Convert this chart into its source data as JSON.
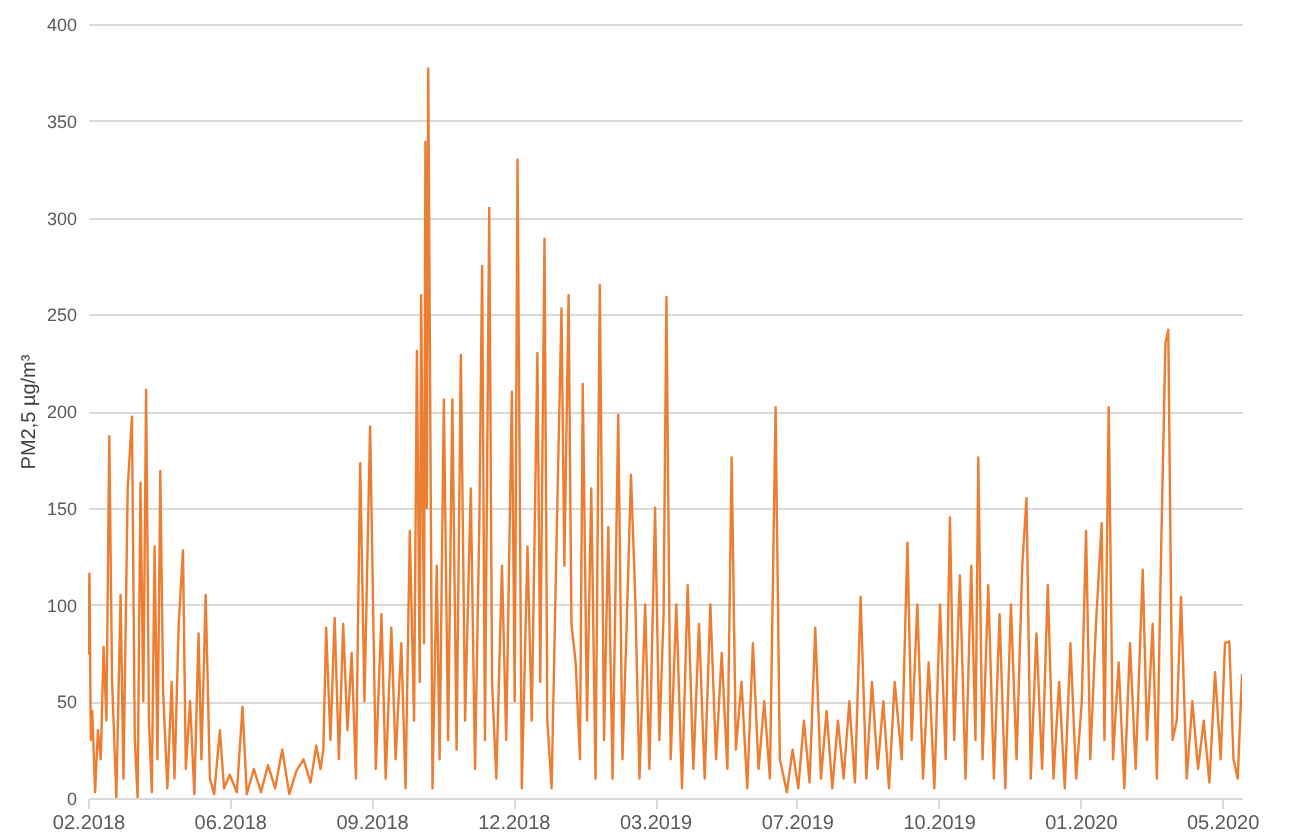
{
  "chart_data": {
    "type": "line",
    "ylabel": "PM2,5 µg/m³",
    "grid": "y",
    "xlim": [
      "2018-02-23",
      "2020-05-17"
    ],
    "ylim": [
      0,
      400
    ],
    "yticks": [
      0,
      50,
      100,
      150,
      200,
      250,
      300,
      350,
      400
    ],
    "xticks": [
      {
        "value": "2018-02-23",
        "label": "02.2018"
      },
      {
        "value": "2018-06-03",
        "label": "06.2018"
      },
      {
        "value": "2018-09-11",
        "label": "09.2018"
      },
      {
        "value": "2018-12-20",
        "label": "12.2018"
      },
      {
        "value": "2019-03-30",
        "label": "03.2019"
      },
      {
        "value": "2019-07-08",
        "label": "07.2019"
      },
      {
        "value": "2019-10-16",
        "label": "10.2019"
      },
      {
        "value": "2020-01-24",
        "label": "01.2020"
      },
      {
        "value": "2020-05-03",
        "label": "05.2020"
      }
    ],
    "x": [
      "2018-02-23",
      "2018-02-24",
      "2018-02-25",
      "2018-02-26",
      "2018-02-28",
      "2018-03-02",
      "2018-03-04",
      "2018-03-06",
      "2018-03-08",
      "2018-03-10",
      "2018-03-12",
      "2018-03-15",
      "2018-03-18",
      "2018-03-20",
      "2018-03-23",
      "2018-03-26",
      "2018-03-28",
      "2018-03-30",
      "2018-04-01",
      "2018-04-03",
      "2018-04-05",
      "2018-04-07",
      "2018-04-09",
      "2018-04-11",
      "2018-04-13",
      "2018-04-15",
      "2018-04-17",
      "2018-04-20",
      "2018-04-23",
      "2018-04-25",
      "2018-04-28",
      "2018-05-01",
      "2018-05-03",
      "2018-05-06",
      "2018-05-09",
      "2018-05-12",
      "2018-05-14",
      "2018-05-17",
      "2018-05-20",
      "2018-05-23",
      "2018-05-27",
      "2018-05-30",
      "2018-06-03",
      "2018-06-08",
      "2018-06-12",
      "2018-06-15",
      "2018-06-20",
      "2018-06-25",
      "2018-06-30",
      "2018-07-05",
      "2018-07-10",
      "2018-07-15",
      "2018-07-20",
      "2018-07-25",
      "2018-07-30",
      "2018-08-03",
      "2018-08-06",
      "2018-08-08",
      "2018-08-10",
      "2018-08-13",
      "2018-08-16",
      "2018-08-19",
      "2018-08-22",
      "2018-08-25",
      "2018-08-28",
      "2018-08-31",
      "2018-09-03",
      "2018-09-06",
      "2018-09-10",
      "2018-09-14",
      "2018-09-18",
      "2018-09-21",
      "2018-09-25",
      "2018-09-28",
      "2018-10-02",
      "2018-10-05",
      "2018-10-08",
      "2018-10-11",
      "2018-10-13",
      "2018-10-15",
      "2018-10-16",
      "2018-10-18",
      "2018-10-19",
      "2018-10-20",
      "2018-10-21",
      "2018-10-24",
      "2018-10-27",
      "2018-10-29",
      "2018-11-01",
      "2018-11-04",
      "2018-11-07",
      "2018-11-10",
      "2018-11-13",
      "2018-11-16",
      "2018-11-20",
      "2018-11-23",
      "2018-11-26",
      "2018-11-28",
      "2018-11-30",
      "2018-12-03",
      "2018-12-05",
      "2018-12-08",
      "2018-12-12",
      "2018-12-15",
      "2018-12-19",
      "2018-12-21",
      "2018-12-23",
      "2018-12-26",
      "2018-12-30",
      "2019-01-02",
      "2019-01-06",
      "2019-01-08",
      "2019-01-11",
      "2019-01-13",
      "2019-01-16",
      "2019-01-20",
      "2019-01-23",
      "2019-01-25",
      "2019-01-28",
      "2019-01-30",
      "2019-02-02",
      "2019-02-05",
      "2019-02-07",
      "2019-02-10",
      "2019-02-13",
      "2019-02-16",
      "2019-02-19",
      "2019-02-22",
      "2019-02-25",
      "2019-02-28",
      "2019-03-04",
      "2019-03-07",
      "2019-03-10",
      "2019-03-13",
      "2019-03-16",
      "2019-03-19",
      "2019-03-23",
      "2019-03-26",
      "2019-03-30",
      "2019-04-02",
      "2019-04-05",
      "2019-04-07",
      "2019-04-10",
      "2019-04-14",
      "2019-04-18",
      "2019-04-22",
      "2019-04-26",
      "2019-04-30",
      "2019-05-04",
      "2019-05-08",
      "2019-05-12",
      "2019-05-16",
      "2019-05-20",
      "2019-05-23",
      "2019-05-26",
      "2019-05-30",
      "2019-06-03",
      "2019-06-07",
      "2019-06-11",
      "2019-06-15",
      "2019-06-19",
      "2019-06-23",
      "2019-06-26",
      "2019-07-01",
      "2019-07-05",
      "2019-07-09",
      "2019-07-13",
      "2019-07-17",
      "2019-07-21",
      "2019-07-25",
      "2019-07-29",
      "2019-08-02",
      "2019-08-06",
      "2019-08-10",
      "2019-08-14",
      "2019-08-18",
      "2019-08-22",
      "2019-08-26",
      "2019-08-30",
      "2019-09-03",
      "2019-09-07",
      "2019-09-11",
      "2019-09-15",
      "2019-09-20",
      "2019-09-24",
      "2019-09-27",
      "2019-10-01",
      "2019-10-05",
      "2019-10-09",
      "2019-10-13",
      "2019-10-17",
      "2019-10-21",
      "2019-10-24",
      "2019-10-27",
      "2019-10-31",
      "2019-11-04",
      "2019-11-08",
      "2019-11-11",
      "2019-11-13",
      "2019-11-16",
      "2019-11-20",
      "2019-11-24",
      "2019-11-28",
      "2019-12-02",
      "2019-12-06",
      "2019-12-10",
      "2019-12-14",
      "2019-12-17",
      "2019-12-20",
      "2019-12-24",
      "2019-12-28",
      "2020-01-01",
      "2020-01-05",
      "2020-01-09",
      "2020-01-13",
      "2020-01-17",
      "2020-01-21",
      "2020-01-25",
      "2020-01-28",
      "2020-01-31",
      "2020-02-04",
      "2020-02-08",
      "2020-02-10",
      "2020-02-13",
      "2020-02-16",
      "2020-02-20",
      "2020-02-24",
      "2020-02-28",
      "2020-03-03",
      "2020-03-08",
      "2020-03-11",
      "2020-03-15",
      "2020-03-18",
      "2020-03-21",
      "2020-03-24",
      "2020-03-26",
      "2020-03-29",
      "2020-04-01",
      "2020-04-04",
      "2020-04-08",
      "2020-04-12",
      "2020-04-16",
      "2020-04-20",
      "2020-04-24",
      "2020-04-28",
      "2020-05-02",
      "2020-05-05",
      "2020-05-08",
      "2020-05-11",
      "2020-05-14",
      "2020-05-17"
    ],
    "series": [
      {
        "color": "#ed7d31",
        "values": [
          74,
          116,
          30,
          45,
          3,
          35,
          20,
          78,
          40,
          187,
          60,
          0,
          105,
          10,
          160,
          197,
          30,
          0,
          163,
          50,
          211,
          40,
          3,
          130,
          20,
          169,
          55,
          5,
          60,
          10,
          90,
          128,
          15,
          50,
          2,
          85,
          20,
          105,
          10,
          2,
          35,
          5,
          12,
          3,
          47,
          2,
          15,
          3,
          17,
          5,
          25,
          2,
          14,
          20,
          8,
          27,
          15,
          25,
          88,
          30,
          93,
          20,
          90,
          35,
          75,
          10,
          173,
          50,
          192,
          15,
          95,
          10,
          88,
          20,
          80,
          5,
          138,
          40,
          231,
          60,
          260,
          80,
          339,
          150,
          377,
          5,
          120,
          20,
          206,
          30,
          206,
          25,
          229,
          40,
          160,
          15,
          140,
          275,
          30,
          305,
          60,
          10,
          120,
          30,
          210,
          50,
          330,
          5,
          130,
          40,
          230,
          60,
          289,
          40,
          5,
          150,
          253,
          120,
          260,
          90,
          70,
          20,
          214,
          40,
          160,
          10,
          265,
          30,
          140,
          10,
          198,
          20,
          90,
          167,
          104,
          10,
          100,
          15,
          150,
          30,
          95,
          259,
          20,
          100,
          5,
          110,
          15,
          90,
          10,
          100,
          20,
          75,
          15,
          176,
          25,
          60,
          5,
          80,
          15,
          50,
          10,
          202,
          20,
          3,
          25,
          5,
          40,
          8,
          88,
          10,
          45,
          5,
          40,
          10,
          50,
          8,
          104,
          10,
          60,
          15,
          50,
          5,
          60,
          20,
          132,
          30,
          100,
          10,
          70,
          5,
          100,
          20,
          145,
          30,
          115,
          10,
          120,
          30,
          176,
          20,
          110,
          10,
          95,
          5,
          100,
          20,
          120,
          155,
          10,
          85,
          15,
          110,
          10,
          60,
          5,
          80,
          10,
          50,
          138,
          20,
          90,
          142,
          30,
          202,
          20,
          70,
          5,
          80,
          15,
          118,
          30,
          90,
          10,
          130,
          235,
          242,
          30,
          40,
          104,
          10,
          50,
          15,
          40,
          8,
          65,
          20,
          80,
          81,
          20,
          10,
          64
        ]
      }
    ]
  }
}
